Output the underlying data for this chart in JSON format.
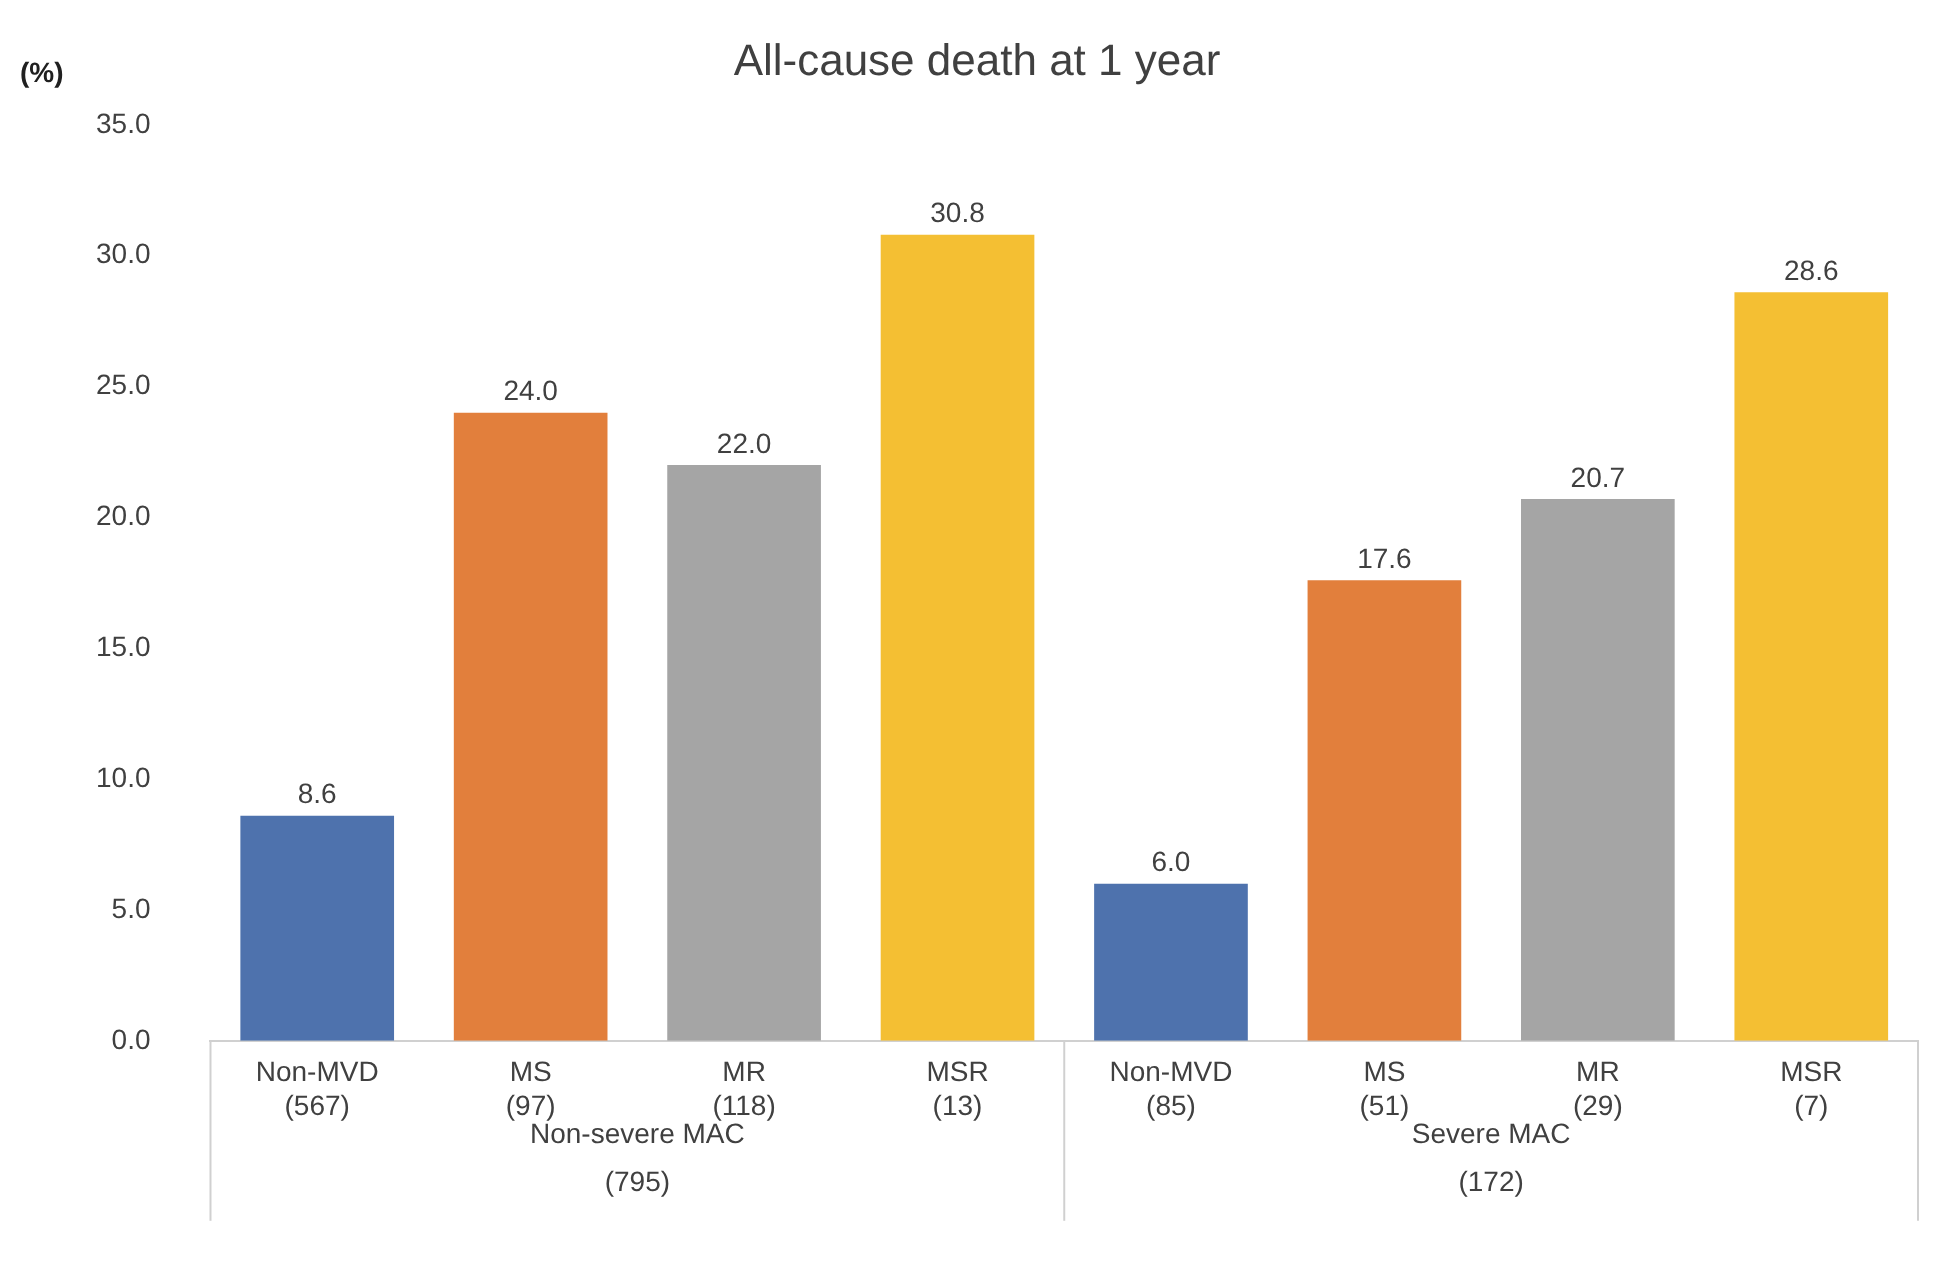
{
  "chart_data": {
    "type": "bar",
    "title": "All-cause death at 1 year",
    "ylabel": "(%)",
    "categories": [
      "Non-MVD\n(567)",
      "MS\n(97)",
      "MR\n(118)",
      "MSR\n(13)",
      "Non-MVD\n(85)",
      "MS\n(51)",
      "MR\n(29)",
      "MSR\n(7)"
    ],
    "values": [
      8.6,
      24.0,
      22.0,
      30.8,
      6.0,
      17.6,
      20.7,
      28.6
    ],
    "colors": [
      "#4e72ad",
      "#e27f3c",
      "#a5a5a5",
      "#f4bf33",
      "#4e72ad",
      "#e27f3c",
      "#a5a5a5",
      "#f4bf33"
    ],
    "value_labels": [
      "8.6",
      "24.0",
      "22.0",
      "30.8",
      "6.0",
      "17.6",
      "20.7",
      "28.6"
    ],
    "ylim": [
      0,
      35
    ],
    "yticks": [
      {
        "value": 0,
        "label": "0.0"
      },
      {
        "value": 5,
        "label": "5.0"
      },
      {
        "value": 10,
        "label": "10.0"
      },
      {
        "value": 15,
        "label": "15.0"
      },
      {
        "value": 20,
        "label": "20.0"
      },
      {
        "value": 25,
        "label": "25.0"
      },
      {
        "value": 30,
        "label": "30.0"
      },
      {
        "value": 35,
        "label": "35.0"
      }
    ],
    "grid": false,
    "legend": false,
    "annotations": [
      "Non-severe MAC\n(795)",
      "Severe MAC\n(172)"
    ]
  }
}
